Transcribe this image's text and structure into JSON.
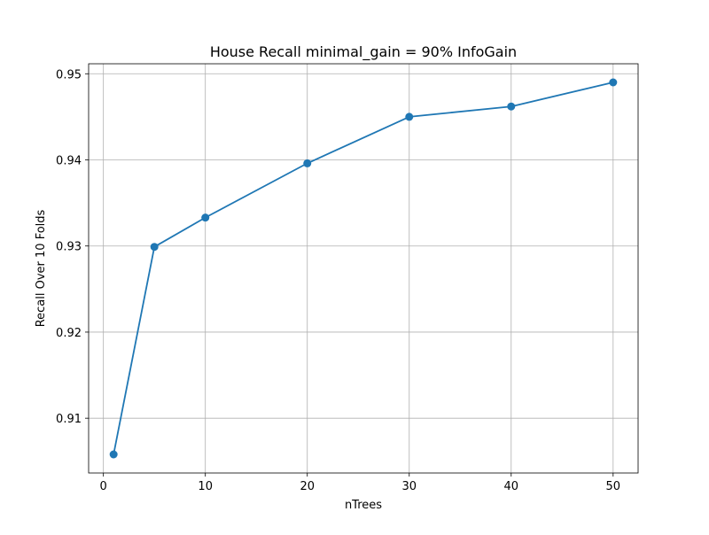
{
  "chart_data": {
    "type": "line",
    "title": "House Recall minimal_gain = 90% InfoGain",
    "xlabel": "nTrees",
    "ylabel": "Recall Over 10 Folds",
    "x": [
      1,
      5,
      10,
      20,
      30,
      40,
      50
    ],
    "series": [
      {
        "values": [
          0.9058,
          0.9299,
          0.9333,
          0.9396,
          0.945,
          0.9462,
          0.949
        ],
        "color": "#1f77b4",
        "marker": "circle"
      }
    ],
    "xlim": [
      -1.45,
      52.45
    ],
    "ylim": [
      0.90364,
      0.95116
    ],
    "xticks": [
      0,
      10,
      20,
      30,
      40,
      50
    ],
    "yticks": [
      0.91,
      0.92,
      0.93,
      0.94,
      0.95
    ],
    "ytick_labels": [
      "0.91",
      "0.92",
      "0.93",
      "0.94",
      "0.95"
    ],
    "grid": true,
    "legend": "none"
  }
}
